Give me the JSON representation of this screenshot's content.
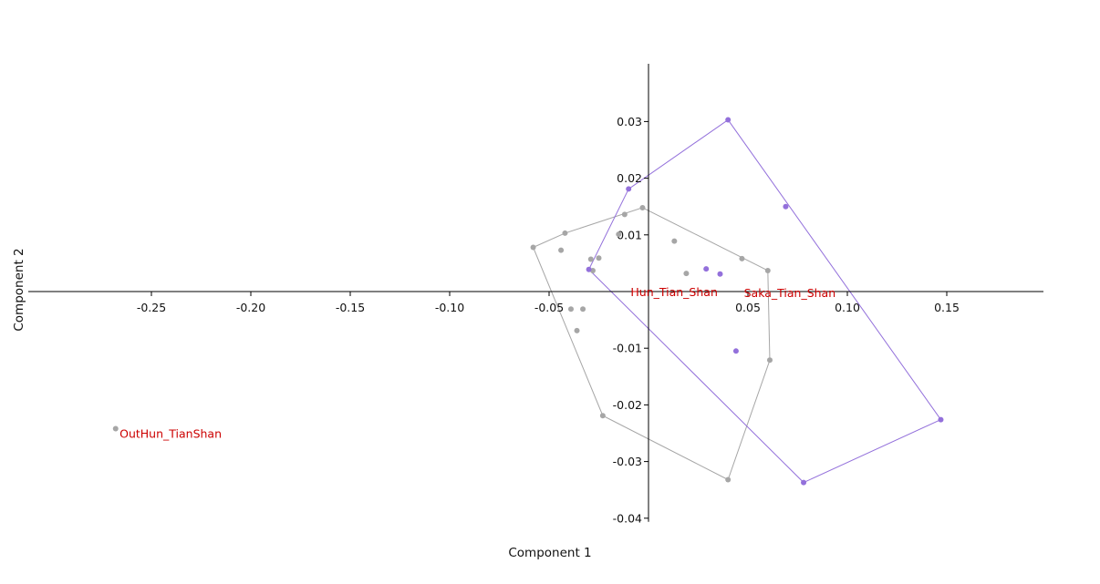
{
  "chart_data": {
    "type": "scatter",
    "xlabel": "Component 1",
    "ylabel": "Component 2",
    "xlim": [
      -0.3,
      0.2
    ],
    "ylim": [
      -0.04,
      0.04
    ],
    "x_ticks": [
      -0.25,
      -0.2,
      -0.15,
      -0.1,
      -0.05,
      0.05,
      0.1,
      0.15
    ],
    "y_ticks": [
      0.03,
      0.02,
      0.01,
      -0.01,
      -0.02,
      -0.03,
      -0.04
    ],
    "x_tick_labels": [
      "-0.25",
      "-0.20",
      "-0.15",
      "-0.10",
      "-0.05",
      "0.05",
      "0.10",
      "0.15"
    ],
    "y_tick_labels": [
      "0.03",
      "0.02",
      "0.01",
      "-0.01",
      "-0.02",
      "-0.03",
      "-0.04"
    ],
    "series": [
      {
        "color": "#a6a6a6",
        "hull": true,
        "points": [
          {
            "x": -0.058,
            "y": 0.0078
          },
          {
            "x": -0.042,
            "y": 0.0103
          },
          {
            "x": -0.044,
            "y": 0.0073
          },
          {
            "x": -0.029,
            "y": 0.0057
          },
          {
            "x": -0.025,
            "y": 0.0059
          },
          {
            "x": -0.028,
            "y": 0.0037
          },
          {
            "x": -0.015,
            "y": 0.0101
          },
          {
            "x": -0.012,
            "y": 0.0136
          },
          {
            "x": -0.003,
            "y": 0.0148
          },
          {
            "x": 0.013,
            "y": 0.0089
          },
          {
            "x": 0.019,
            "y": 0.0032
          },
          {
            "x": 0.047,
            "y": 0.0058
          },
          {
            "x": 0.06,
            "y": 0.0037
          },
          {
            "x": -0.039,
            "y": -0.0031
          },
          {
            "x": -0.033,
            "y": -0.0031
          },
          {
            "x": -0.036,
            "y": -0.0069
          },
          {
            "x": 0.061,
            "y": -0.0121
          },
          {
            "x": -0.023,
            "y": -0.0219
          },
          {
            "x": 0.04,
            "y": -0.0332
          }
        ],
        "hull_order": [
          0,
          1,
          8,
          12,
          16,
          18,
          17
        ]
      },
      {
        "color": "#9370db",
        "hull": true,
        "points": [
          {
            "x": 0.04,
            "y": 0.0303
          },
          {
            "x": -0.01,
            "y": 0.0181
          },
          {
            "x": 0.069,
            "y": 0.015
          },
          {
            "x": -0.03,
            "y": 0.0039
          },
          {
            "x": 0.029,
            "y": 0.004
          },
          {
            "x": 0.036,
            "y": 0.0031
          },
          {
            "x": 0.044,
            "y": -0.0105
          },
          {
            "x": 0.147,
            "y": -0.0226
          },
          {
            "x": 0.078,
            "y": -0.0337
          }
        ],
        "hull_order": [
          0,
          7,
          8,
          3,
          1
        ]
      },
      {
        "color": "#a6a6a6",
        "hull": false,
        "points": [
          {
            "x": -0.268,
            "y": -0.0242
          }
        ]
      }
    ],
    "annotations": [
      {
        "text": "Hun_Tian_Shan",
        "x": -0.009,
        "y": -0.0002,
        "color": "#cc0000"
      },
      {
        "text": "Saka_Tian_Shan",
        "x": 0.048,
        "y": -0.0003,
        "color": "#cc0000"
      },
      {
        "text": "OutHun_TianShan",
        "x": -0.266,
        "y": -0.0252,
        "color": "#cc0000"
      }
    ]
  }
}
